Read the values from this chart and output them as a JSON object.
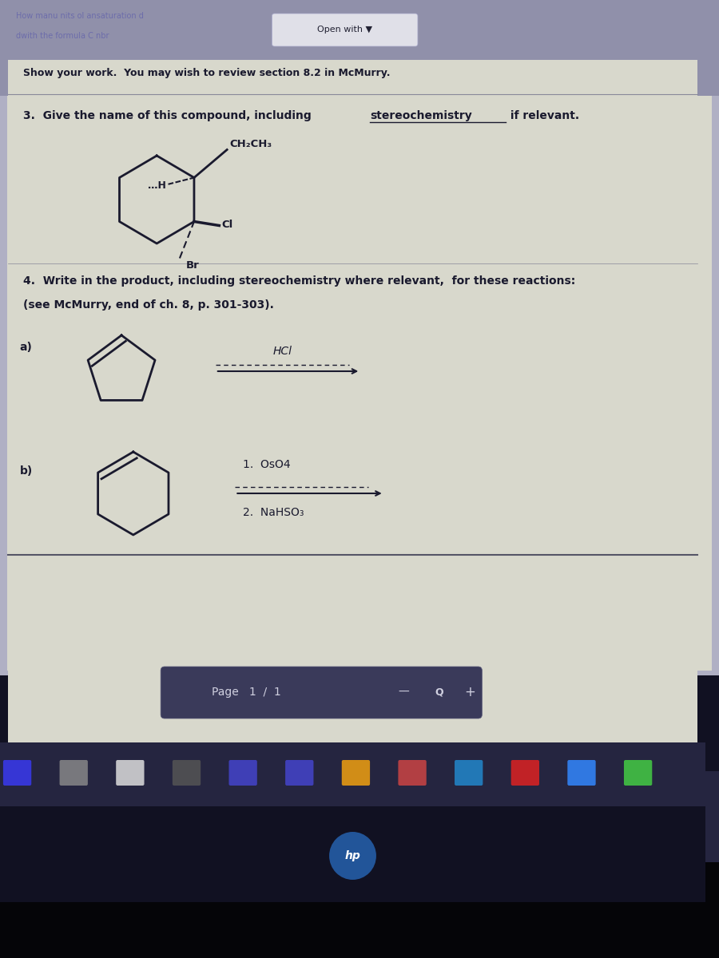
{
  "header_text": "Open with ▼",
  "line1": "Show your work.  You may wish to review section 8.2 in McMurry.",
  "q3_text": "3.  Give the name of this compound, including ",
  "q3_stereo": "stereochemistry",
  "q3_rest": " if relevant.",
  "q4_text": "4.  Write in the product, including stereochemistry where relevant,  for these reactions:",
  "q4_sub": "(see McMurry, end of ch. 8, p. 301-303).",
  "label_a": "a)",
  "label_b": "b)",
  "reagent_a": "HCl",
  "reagent_b1": "1.  OsO4",
  "reagent_b2": "2.  NaHSO₃",
  "page_bar_text": "Page   1  /  1",
  "paper_color": "#d8d8cc",
  "text_color": "#1a1a2e",
  "header_bg": "#9090aa",
  "screen_bg": "#b0b0c4",
  "taskbar_color": "#252540",
  "dark_bottom": "#050508",
  "hp_area": "#111122",
  "hp_circle": "#225599"
}
